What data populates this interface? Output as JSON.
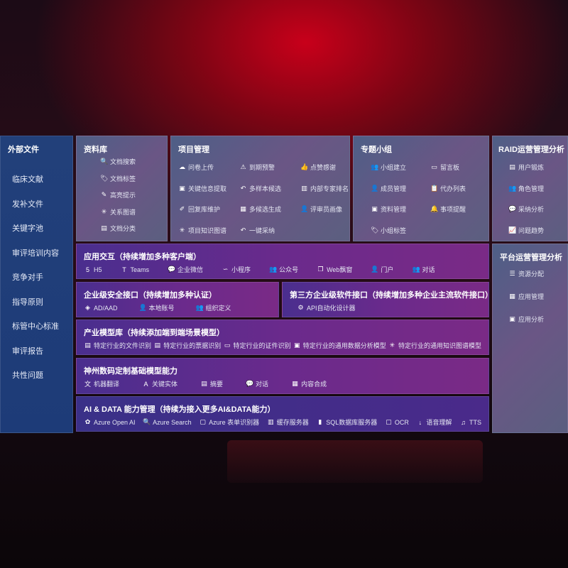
{
  "sidebar": {
    "title": "外部文件",
    "items": [
      "临床文献",
      "发补文件",
      "关键字池",
      "审评培训内容",
      "竞争对手",
      "指导原则",
      "标管中心标准",
      "审评报告",
      "共性问题"
    ]
  },
  "library": {
    "title": "资料库",
    "items": [
      {
        "icon": "doc-search-icon",
        "g": "🔍",
        "label": "文档搜索"
      },
      {
        "icon": "tag-icon",
        "g": "🏷",
        "label": "文档标签"
      },
      {
        "icon": "pen-icon",
        "g": "✎",
        "label": "高亮提示"
      },
      {
        "icon": "graph-icon",
        "g": "✳",
        "label": "关系图谱"
      },
      {
        "icon": "doc-category-icon",
        "g": "▤",
        "label": "文档分类"
      }
    ]
  },
  "project": {
    "title": "项目管理",
    "items": [
      {
        "icon": "cloud-upload-icon",
        "g": "☁",
        "label": "问卷上传"
      },
      {
        "icon": "alarm-icon",
        "g": "⚠",
        "label": "到期预警"
      },
      {
        "icon": "thumbs-up-icon",
        "g": "👍",
        "label": "点赞感谢"
      },
      {
        "icon": "extract-icon",
        "g": "▣",
        "label": "关键信息提取"
      },
      {
        "icon": "reply-icon",
        "g": "↶",
        "label": "多样本候选"
      },
      {
        "icon": "ranking-icon",
        "g": "▥",
        "label": "内部专家排名"
      },
      {
        "icon": "edit-icon",
        "g": "✐",
        "label": "回复库维护"
      },
      {
        "icon": "puzzle-icon",
        "g": "▦",
        "label": "多候选生成"
      },
      {
        "icon": "user-icon",
        "g": "👤",
        "label": "评审员画像"
      },
      {
        "icon": "graph-icon",
        "g": "✳",
        "label": "项目知识图谱"
      },
      {
        "icon": "reply-icon",
        "g": "↶",
        "label": "一键采纳"
      }
    ]
  },
  "group": {
    "title": "专题小组",
    "items": [
      {
        "icon": "group-icon",
        "g": "👥",
        "label": "小组建立"
      },
      {
        "icon": "bbs-icon",
        "g": "▭",
        "label": "留言板"
      },
      {
        "icon": "member-icon",
        "g": "👤",
        "label": "成员管理"
      },
      {
        "icon": "clipboard-icon",
        "g": "📋",
        "label": "代办列表"
      },
      {
        "icon": "folder-icon",
        "g": "▣",
        "label": "资料管理"
      },
      {
        "icon": "bell-icon",
        "g": "🔔",
        "label": "事项提醒"
      },
      {
        "icon": "tag-icon",
        "g": "🏷",
        "label": "小组标签"
      }
    ]
  },
  "raid": {
    "title": "RAID运营管理分析",
    "items": [
      {
        "icon": "id-card-icon",
        "g": "▤",
        "label": "用户锻炼"
      },
      {
        "icon": "group-icon",
        "g": "👥",
        "label": "角色管理"
      },
      {
        "icon": "qa-icon",
        "g": "💬",
        "label": "采纳分析"
      },
      {
        "icon": "trend-icon",
        "g": "📈",
        "label": "问题趋势"
      }
    ]
  },
  "platform": {
    "title": "平台运营管理分析",
    "items": [
      {
        "icon": "list-icon",
        "g": "☰",
        "label": "资源分配"
      },
      {
        "icon": "apps-icon",
        "g": "▦",
        "label": "应用管理"
      },
      {
        "icon": "analysis-icon",
        "g": "▣",
        "label": "应用分析"
      }
    ]
  },
  "app": {
    "title": "应用交互（持续增加多种客户端）",
    "items": [
      {
        "icon": "html5-icon",
        "g": "5",
        "label": "H5"
      },
      {
        "icon": "teams-icon",
        "g": "T",
        "label": "Teams"
      },
      {
        "icon": "wechat-icon",
        "g": "💬",
        "label": "企业微信"
      },
      {
        "icon": "miniprogram-icon",
        "g": "∽",
        "label": "小程序"
      },
      {
        "icon": "public-account-icon",
        "g": "👥",
        "label": "公众号"
      },
      {
        "icon": "window-icon",
        "g": "❐",
        "label": "Web飘窗"
      },
      {
        "icon": "portal-icon",
        "g": "👤",
        "label": "门户"
      },
      {
        "icon": "chat-icon",
        "g": "👥",
        "label": "对话"
      }
    ]
  },
  "security": {
    "title": "企业级安全接口（持续增加多种认证）",
    "items": [
      {
        "icon": "ad-icon",
        "g": "◈",
        "label": "AD/AAD"
      },
      {
        "icon": "local-account-icon",
        "g": "👤",
        "label": "本地账号"
      },
      {
        "icon": "org-icon",
        "g": "👥",
        "label": "组织定义"
      }
    ]
  },
  "thirdparty": {
    "title": "第三方企业级软件接口（持续增加多种企业主流软件接口）",
    "items": [
      {
        "icon": "api-gear-icon",
        "g": "⚙",
        "label": "API自动化设计器"
      }
    ]
  },
  "industry": {
    "title": "产业模型库（持续添加端到端场景模型）",
    "items": [
      {
        "icon": "file-icon",
        "g": "▤",
        "label": "特定行业的文件识别"
      },
      {
        "icon": "receipt-icon",
        "g": "▤",
        "label": "特定行业的票据识别"
      },
      {
        "icon": "id-card-icon",
        "g": "▭",
        "label": "特定行业的证件识别"
      },
      {
        "icon": "chart-icon",
        "g": "▣",
        "label": "特定行业的通用数据分析模型"
      },
      {
        "icon": "graph-icon",
        "g": "✳",
        "label": "特定行业的通用知识图谱模型"
      }
    ]
  },
  "base": {
    "title": "神州数码定制基础模型能力",
    "items": [
      {
        "icon": "translate-icon",
        "g": "文",
        "label": "机器翻译"
      },
      {
        "icon": "entity-icon",
        "g": "A",
        "label": "关键实体"
      },
      {
        "icon": "summary-icon",
        "g": "▤",
        "label": "摘要"
      },
      {
        "icon": "chat-icon",
        "g": "💬",
        "label": "对话"
      },
      {
        "icon": "compose-icon",
        "g": "▦",
        "label": "内容合成"
      }
    ]
  },
  "ai": {
    "title": "AI & DATA 能力管理（持续为接入更多AI&DATA能力）",
    "items": [
      {
        "icon": "openai-icon",
        "g": "✿",
        "label": "Azure Open AI"
      },
      {
        "icon": "search-icon",
        "g": "🔍",
        "label": "Azure Search"
      },
      {
        "icon": "form-recognizer-icon",
        "g": "▢",
        "label": "Azure 表单识别器"
      },
      {
        "icon": "cache-server-icon",
        "g": "▥",
        "label": "缓存服务器"
      },
      {
        "icon": "sql-icon",
        "g": "▮",
        "label": "SQL数据库服务器"
      },
      {
        "icon": "ocr-icon",
        "g": "▢",
        "label": "OCR"
      },
      {
        "icon": "speech-icon",
        "g": "↓",
        "label": "语音理解"
      },
      {
        "icon": "tts-icon",
        "g": "♫",
        "label": "TTS"
      }
    ]
  }
}
